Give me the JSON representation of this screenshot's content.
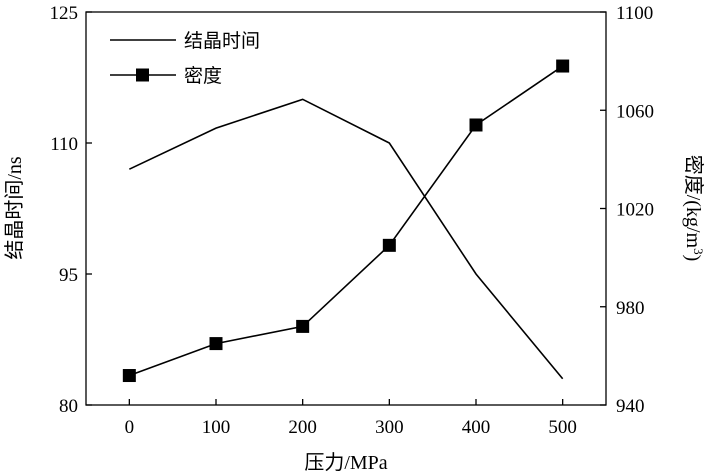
{
  "chart_data": {
    "type": "line",
    "x": [
      0,
      100,
      200,
      300,
      400,
      500
    ],
    "xlabel": "压力/MPa",
    "xlim": [
      -50,
      550
    ],
    "xticks": [
      "0",
      "100",
      "200",
      "300",
      "400",
      "500"
    ],
    "y_left": {
      "label": "结晶时间/ns",
      "lim": [
        80,
        125
      ],
      "ticks": [
        "80",
        "95",
        "110",
        "125"
      ]
    },
    "y_right": {
      "label_main": "密度/(kg/m",
      "label_sup": "3",
      "label_end": ")",
      "lim": [
        940,
        1100
      ],
      "ticks": [
        "940",
        "980",
        "1020",
        "1060",
        "1100"
      ]
    },
    "series": [
      {
        "name": "结晶时间",
        "axis": "left",
        "marker": "none",
        "values": [
          107,
          111.7,
          115,
          110,
          95,
          83
        ]
      },
      {
        "name": "密度",
        "axis": "right",
        "marker": "square",
        "values": [
          952,
          965,
          972,
          1005,
          1054,
          1078
        ]
      }
    ],
    "legend_position": "top-left",
    "grid": false,
    "colors": {
      "line": "#000000"
    }
  }
}
